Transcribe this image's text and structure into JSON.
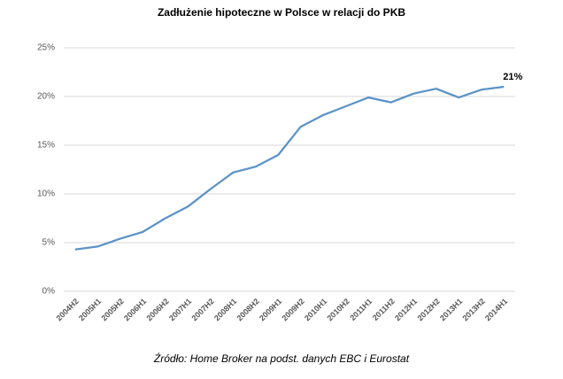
{
  "chart_data": {
    "type": "line",
    "title": "Zadłużenie hipoteczne w Polsce w relacji do PKB",
    "source": "Źródło: Home Broker na podst. danych EBC i Eurostat",
    "categories": [
      "2004H2",
      "2005H1",
      "2005H2",
      "2006H1",
      "2006H2",
      "2007H1",
      "2007H2",
      "2008H1",
      "2008H2",
      "2009H1",
      "2009H2",
      "2010H1",
      "2010H2",
      "2011H1",
      "2011H2",
      "2012H1",
      "2012H2",
      "2013H1",
      "2013H2",
      "2014H1"
    ],
    "values": [
      4.3,
      4.6,
      5.4,
      6.1,
      7.5,
      8.7,
      10.5,
      12.2,
      12.8,
      14.0,
      16.9,
      18.1,
      19.0,
      19.9,
      19.4,
      20.3,
      20.8,
      19.9,
      20.7,
      21.0
    ],
    "value_labels": [
      null,
      null,
      null,
      null,
      null,
      null,
      null,
      null,
      null,
      null,
      null,
      null,
      null,
      null,
      null,
      null,
      null,
      null,
      null,
      "21%"
    ],
    "color": "#5b93c7",
    "ylim": [
      0,
      25
    ],
    "yticks": [
      {
        "value": 0,
        "label": "0%"
      },
      {
        "value": 5,
        "label": "5%"
      },
      {
        "value": 10,
        "label": "10%"
      },
      {
        "value": 15,
        "label": "15%"
      },
      {
        "value": 20,
        "label": "20%"
      },
      {
        "value": 25,
        "label": "25%"
      }
    ],
    "grid": true
  }
}
